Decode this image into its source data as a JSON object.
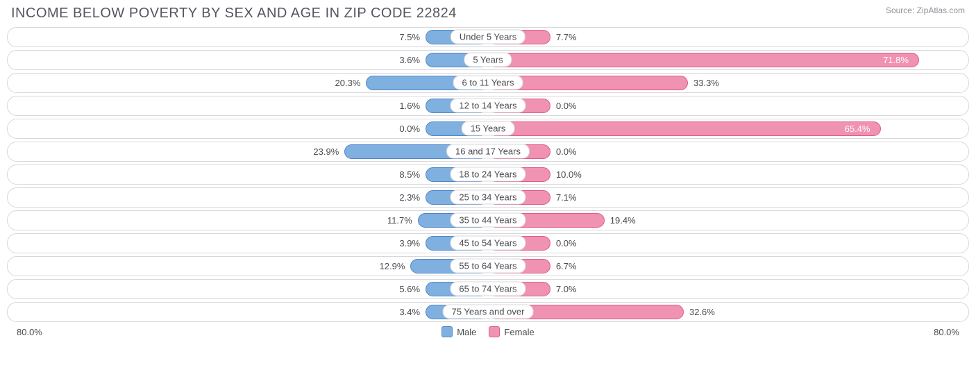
{
  "title": "INCOME BELOW POVERTY BY SEX AND AGE IN ZIP CODE 22824",
  "source": "Source: ZipAtlas.com",
  "chart": {
    "type": "diverging-bar",
    "axis_max": 80.0,
    "axis_label_left": "80.0%",
    "axis_label_right": "80.0%",
    "center_label_min_pct": 13.0,
    "colors": {
      "male_fill": "#7fb0e0",
      "male_border": "#4f86c6",
      "female_fill": "#f092b1",
      "female_border": "#e05a8a",
      "row_border": "#d8d8dc",
      "text": "#4a4a52",
      "title_text": "#555560",
      "source_text": "#90909a",
      "background": "#ffffff",
      "inside_text": "#ffffff"
    },
    "font_sizes": {
      "title": 20,
      "labels": 13,
      "source": 12
    },
    "legend": [
      {
        "label": "Male",
        "fill": "#7fb0e0",
        "border": "#4f86c6"
      },
      {
        "label": "Female",
        "fill": "#f092b1",
        "border": "#e05a8a"
      }
    ],
    "rows": [
      {
        "category": "Under 5 Years",
        "male": 7.5,
        "female": 7.7,
        "male_label": "7.5%",
        "female_label": "7.7%",
        "female_inside": false
      },
      {
        "category": "5 Years",
        "male": 3.6,
        "female": 71.8,
        "male_label": "3.6%",
        "female_label": "71.8%",
        "female_inside": true
      },
      {
        "category": "6 to 11 Years",
        "male": 20.3,
        "female": 33.3,
        "male_label": "20.3%",
        "female_label": "33.3%",
        "female_inside": false
      },
      {
        "category": "12 to 14 Years",
        "male": 1.6,
        "female": 0.0,
        "male_label": "1.6%",
        "female_label": "0.0%",
        "female_inside": false
      },
      {
        "category": "15 Years",
        "male": 0.0,
        "female": 65.4,
        "male_label": "0.0%",
        "female_label": "65.4%",
        "female_inside": true
      },
      {
        "category": "16 and 17 Years",
        "male": 23.9,
        "female": 0.0,
        "male_label": "23.9%",
        "female_label": "0.0%",
        "female_inside": false
      },
      {
        "category": "18 to 24 Years",
        "male": 8.5,
        "female": 10.0,
        "male_label": "8.5%",
        "female_label": "10.0%",
        "female_inside": false
      },
      {
        "category": "25 to 34 Years",
        "male": 2.3,
        "female": 7.1,
        "male_label": "2.3%",
        "female_label": "7.1%",
        "female_inside": false
      },
      {
        "category": "35 to 44 Years",
        "male": 11.7,
        "female": 19.4,
        "male_label": "11.7%",
        "female_label": "19.4%",
        "female_inside": false
      },
      {
        "category": "45 to 54 Years",
        "male": 3.9,
        "female": 0.0,
        "male_label": "3.9%",
        "female_label": "0.0%",
        "female_inside": false
      },
      {
        "category": "55 to 64 Years",
        "male": 12.9,
        "female": 6.7,
        "male_label": "12.9%",
        "female_label": "6.7%",
        "female_inside": false
      },
      {
        "category": "65 to 74 Years",
        "male": 5.6,
        "female": 7.0,
        "male_label": "5.6%",
        "female_label": "7.0%",
        "female_inside": false
      },
      {
        "category": "75 Years and over",
        "male": 3.4,
        "female": 32.6,
        "male_label": "3.4%",
        "female_label": "32.6%",
        "female_inside": false
      }
    ]
  }
}
